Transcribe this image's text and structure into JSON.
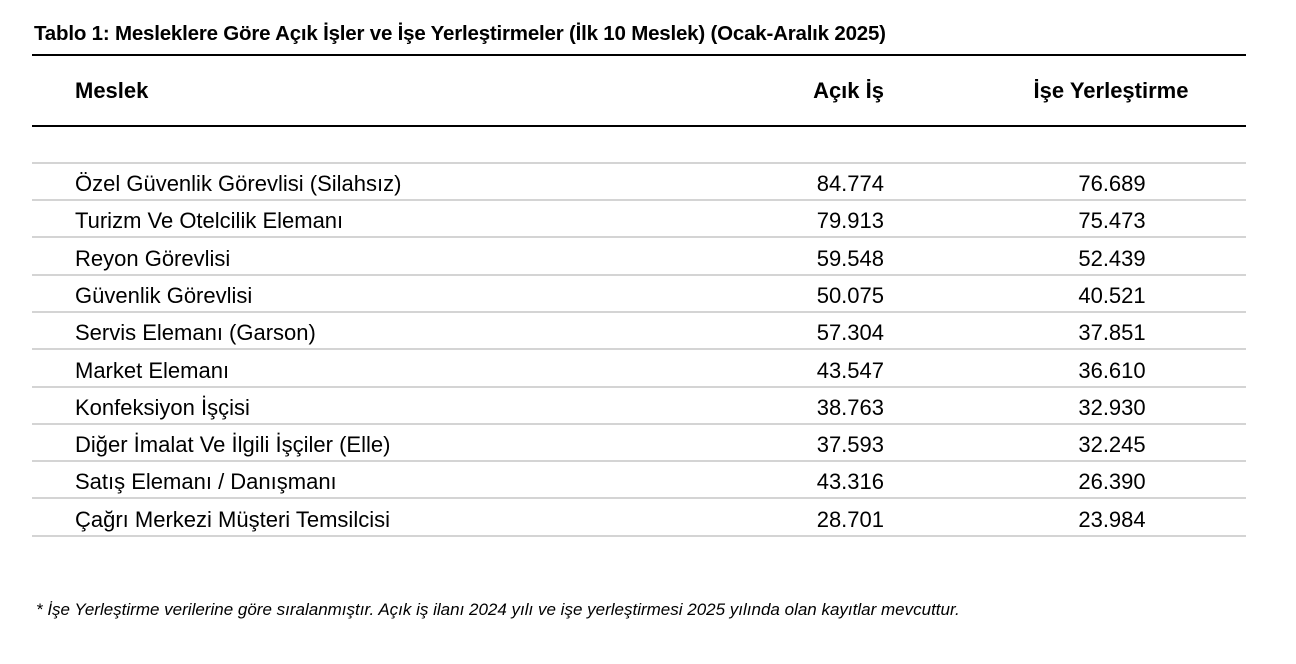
{
  "title": "Tablo 1: Mesleklere Göre Açık İşler ve İşe Yerleştirmeler (İlk 10 Meslek) (Ocak-Aralık 2025)",
  "headers": {
    "meslek": "Meslek",
    "acik_is": "Açık İş",
    "ise_yerlestirme": "İşe Yerleştirme"
  },
  "rows": [
    {
      "meslek": "Özel Güvenlik Görevlisi (Silahsız)",
      "acik_is": "84.774",
      "ise_yerlestirme": "76.689"
    },
    {
      "meslek": "Turizm Ve Otelcilik Elemanı",
      "acik_is": "79.913",
      "ise_yerlestirme": "75.473"
    },
    {
      "meslek": "Reyon Görevlisi",
      "acik_is": "59.548",
      "ise_yerlestirme": "52.439"
    },
    {
      "meslek": "Güvenlik Görevlisi",
      "acik_is": "50.075",
      "ise_yerlestirme": "40.521"
    },
    {
      "meslek": "Servis Elemanı (Garson)",
      "acik_is": "57.304",
      "ise_yerlestirme": "37.851"
    },
    {
      "meslek": "Market Elemanı",
      "acik_is": "43.547",
      "ise_yerlestirme": "36.610"
    },
    {
      "meslek": "Konfeksiyon İşçisi",
      "acik_is": "38.763",
      "ise_yerlestirme": "32.930"
    },
    {
      "meslek": "Diğer İmalat Ve İlgili İşçiler (Elle)",
      "acik_is": "37.593",
      "ise_yerlestirme": "32.245"
    },
    {
      "meslek": "Satış Elemanı / Danışmanı",
      "acik_is": "43.316",
      "ise_yerlestirme": "26.390"
    },
    {
      "meslek": "Çağrı Merkezi Müşteri Temsilcisi",
      "acik_is": "28.701",
      "ise_yerlestirme": "23.984"
    }
  ],
  "footnote": "* İşe Yerleştirme verilerine göre sıralanmıştır. Açık iş ilanı 2024 yılı ve işe yerleştirmesi 2025 yılında olan kayıtlar mevcuttur."
}
